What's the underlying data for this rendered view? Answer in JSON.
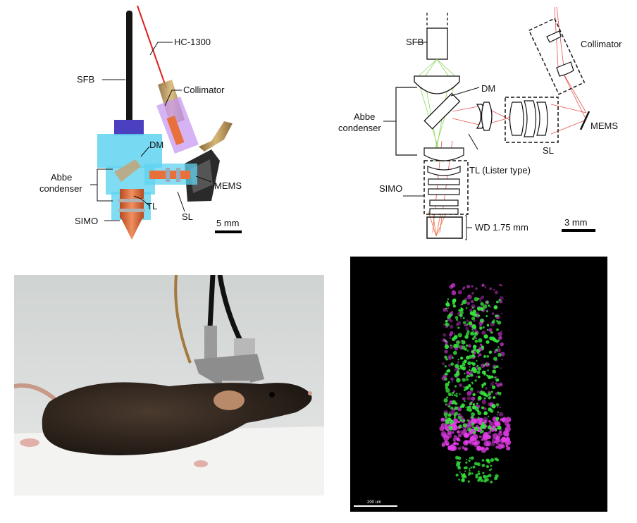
{
  "panel_a": {
    "labels": {
      "fiber": "HC-1300",
      "sfb": "SFB",
      "collimator": "Collimator",
      "dm": "DM",
      "abbe": [
        "Abbe",
        "condenser"
      ],
      "mems": "MEMS",
      "tl": "TL",
      "simo": "SIMO",
      "sl": "SL"
    },
    "scale_bar": "5 mm"
  },
  "panel_b": {
    "labels": {
      "sfb": "SFB",
      "collimator": "Collimator",
      "dm": "DM",
      "abbe": [
        "Abbe",
        "condenser"
      ],
      "mems": "MEMS",
      "sl": "SL",
      "tl": "TL (Lister type)",
      "simo": "SIMO",
      "wd": "WD 1.75 mm"
    },
    "scale_bar": "3 mm"
  },
  "panel_d": {
    "scale_bar": "200 um"
  },
  "colors": {
    "housing_blue": "#5fd3f0",
    "collimator_purple": "#c89af0",
    "fiber_red": "#e02020",
    "beam_green": "#7fd24a",
    "beam_red": "#e85050",
    "signal_green": "#36e33c",
    "signal_magenta": "#e23ce8"
  }
}
